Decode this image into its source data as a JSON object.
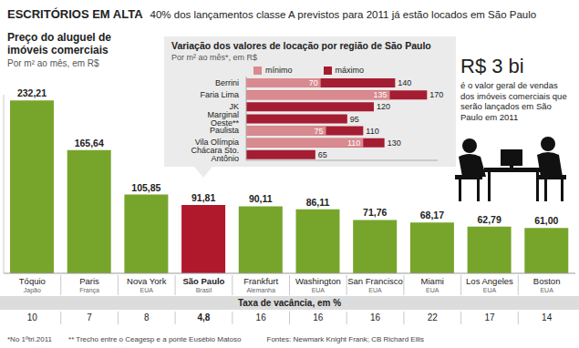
{
  "header": {
    "title": "ESCRITÓRIOS EM ALTA",
    "subtitle": "40% dos lançamentos classe A previstos para 2011 já estão locados em São Paulo"
  },
  "chart_data": [
    {
      "type": "bar",
      "title": "Preço do aluguel de imóveis comerciais",
      "subtitle": "Por m² ao mês, em R$",
      "categories": [
        "Tóquio",
        "Paris",
        "Nova York",
        "São Paulo",
        "Frankfurt",
        "Washington",
        "San Francisco",
        "Miami",
        "Los Angeles",
        "Boston"
      ],
      "countries": [
        "Japão",
        "França",
        "EUA",
        "Brasil",
        "Alemanha",
        "EUA",
        "EUA",
        "EUA",
        "EUA",
        "EUA"
      ],
      "values": [
        232.21,
        165.64,
        105.85,
        91.81,
        90.11,
        86.11,
        71.76,
        68.17,
        62.79,
        61.0
      ],
      "value_labels": [
        "232,21",
        "165,64",
        "105,85",
        "91,81",
        "90,11",
        "86,11",
        "71,76",
        "68,17",
        "62,79",
        "61,00"
      ],
      "colors": [
        "#77a52c",
        "#77a52c",
        "#77a52c",
        "#b0182c",
        "#77a52c",
        "#77a52c",
        "#77a52c",
        "#77a52c",
        "#77a52c",
        "#77a52c"
      ],
      "ylim": [
        0,
        240
      ],
      "data_labels": true,
      "tick_labels": "x",
      "vacancy": {
        "title": "Taxa de vacância, em %",
        "values": [
          10,
          7,
          8,
          4.8,
          16,
          16,
          16,
          22,
          17,
          14
        ],
        "value_labels": [
          "10",
          "7",
          "8",
          "4,8",
          "16",
          "16",
          "16",
          "22",
          "17",
          "14"
        ]
      }
    },
    {
      "type": "bar",
      "orientation": "horizontal",
      "title": "Variação dos valores de locação por região de São Paulo",
      "subtitle": "Por m² ao mês*, em R$",
      "categories": [
        "Berrini",
        "Faria Lima",
        "JK",
        "Marginal Oeste**",
        "Paulista",
        "Vila Olímpia",
        "Chácara Sto. Antônio"
      ],
      "series": [
        {
          "name": "mínimo",
          "color": "#d98a8f",
          "values": [
            70,
            135,
            null,
            null,
            75,
            110,
            null
          ]
        },
        {
          "name": "máximo",
          "color": "#a51d32",
          "values": [
            140,
            170,
            120,
            95,
            110,
            130,
            65
          ]
        }
      ],
      "xlim": [
        0,
        180
      ],
      "legend": "top",
      "data_labels": true,
      "tick_labels": "y"
    }
  ],
  "annotation": {
    "value": "R$ 3 bi",
    "text": "é o valor geral de vendas dos imóveis comerciais que serão lançados em São Paulo em 2011"
  },
  "footnotes": [
    "*No 1ºtri.2011",
    "** Trecho entre o Ceagesp e a ponte Eusébio Matoso"
  ],
  "source": "Fontes: Newmark Knight Frank; CB Richard Ellis"
}
